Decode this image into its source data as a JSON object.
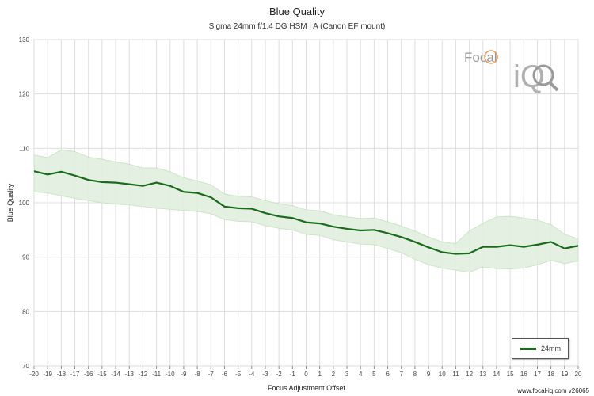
{
  "chart_data": {
    "type": "line",
    "title": "Blue Quality",
    "subtitle": "Sigma 24mm f/1.4 DG HSM | A (Canon EF mount)",
    "xlabel": "Focus Adjustment Offset",
    "ylabel": "Blue Quality",
    "xlim": [
      -20,
      20
    ],
    "ylim": [
      70,
      130
    ],
    "y_ticks": [
      70,
      80,
      90,
      100,
      110,
      120,
      130
    ],
    "x": [
      -20,
      -19,
      -18,
      -17,
      -16,
      -15,
      -14,
      -13,
      -12,
      -11,
      -10,
      -9,
      -8,
      -7,
      -6,
      -5,
      -4,
      -3,
      -2,
      -1,
      0,
      1,
      2,
      3,
      4,
      5,
      6,
      7,
      8,
      9,
      10,
      11,
      12,
      13,
      14,
      15,
      16,
      17,
      18,
      19,
      20
    ],
    "series": [
      {
        "name": "24mm",
        "color": "#1a6b1a",
        "values": [
          105.8,
          105.2,
          105.7,
          105.0,
          104.2,
          103.8,
          103.7,
          103.4,
          103.1,
          103.7,
          103.1,
          102.0,
          101.8,
          101.0,
          99.3,
          99.0,
          98.9,
          98.1,
          97.5,
          97.2,
          96.4,
          96.2,
          95.6,
          95.2,
          94.9,
          95.0,
          94.4,
          93.7,
          92.8,
          91.8,
          90.9,
          90.6,
          90.7,
          91.9,
          91.9,
          92.2,
          91.9,
          92.3,
          92.8,
          91.6,
          92.1
        ],
        "band_upper": [
          108.8,
          108.3,
          109.7,
          109.4,
          108.4,
          108.0,
          107.5,
          107.1,
          106.4,
          106.4,
          105.7,
          104.6,
          104.0,
          103.3,
          101.6,
          101.2,
          101.1,
          100.4,
          99.8,
          99.5,
          98.7,
          98.5,
          97.8,
          97.4,
          97.1,
          97.2,
          96.5,
          95.7,
          94.8,
          93.7,
          92.8,
          92.5,
          94.8,
          96.2,
          97.4,
          97.5,
          97.2,
          96.8,
          96.0,
          94.2,
          93.4
        ],
        "band_lower": [
          102.0,
          101.8,
          101.3,
          100.8,
          100.4,
          100.0,
          99.8,
          99.6,
          99.3,
          99.0,
          98.8,
          98.6,
          98.4,
          98.0,
          96.9,
          96.6,
          96.5,
          95.8,
          95.3,
          95.0,
          94.2,
          94.0,
          93.2,
          92.8,
          92.4,
          92.3,
          91.6,
          90.8,
          89.6,
          88.6,
          88.0,
          87.6,
          87.2,
          88.2,
          87.9,
          87.8,
          88.0,
          88.6,
          89.4,
          88.8,
          89.3
        ]
      }
    ],
    "legend": {
      "label": "24mm",
      "placement": "bottom-right"
    },
    "grid": true
  },
  "watermark": "www.focal-iq.com  v26065",
  "logo_text": {
    "focal": "Focal",
    "iq": "iQ"
  }
}
